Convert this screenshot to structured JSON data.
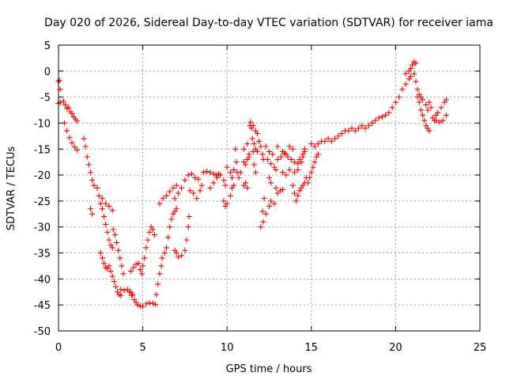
{
  "chart_data": {
    "type": "scatter",
    "title": "Day 020 of 2026, Sidereal Day-to-day VTEC variation (SDTVAR) for receiver iama",
    "xlabel": "GPS time / hours",
    "ylabel": "SDTVAR / TECUs",
    "xlim": [
      0,
      25
    ],
    "ylim": [
      -50,
      5
    ],
    "xticks": [
      0,
      5,
      10,
      15,
      20,
      25
    ],
    "yticks": [
      5,
      0,
      -5,
      -10,
      -15,
      -20,
      -25,
      -30,
      -35,
      -40,
      -45,
      -50
    ],
    "grid": true,
    "marker": "plus",
    "color": "#ff0000",
    "series": [
      {
        "name": "SDTVAR",
        "points": [
          [
            0.0,
            -2.0
          ],
          [
            0.05,
            -1.8
          ],
          [
            0.1,
            -3.5
          ],
          [
            0.0,
            -6.2
          ],
          [
            0.1,
            -6.0
          ],
          [
            0.3,
            -5.8
          ],
          [
            0.4,
            -6.5
          ],
          [
            0.5,
            -7.2
          ],
          [
            0.6,
            -7.0
          ],
          [
            0.7,
            -7.8
          ],
          [
            0.8,
            -8.2
          ],
          [
            0.9,
            -8.8
          ],
          [
            1.0,
            -9.2
          ],
          [
            1.1,
            -9.6
          ],
          [
            0.35,
            -10.0
          ],
          [
            0.5,
            -11.5
          ],
          [
            0.65,
            -12.8
          ],
          [
            0.8,
            -13.8
          ],
          [
            0.95,
            -14.6
          ],
          [
            1.1,
            -15.2
          ],
          [
            1.5,
            -13.0
          ],
          [
            1.6,
            -14.5
          ],
          [
            1.7,
            -16.5
          ],
          [
            1.8,
            -18.0
          ],
          [
            1.9,
            -19.5
          ],
          [
            2.0,
            -21.0
          ],
          [
            2.1,
            -22.0
          ],
          [
            1.9,
            -26.5
          ],
          [
            2.0,
            -27.5
          ],
          [
            2.3,
            -22.5
          ],
          [
            2.4,
            -24.0
          ],
          [
            2.5,
            -25.5
          ],
          [
            2.6,
            -26.5
          ],
          [
            2.7,
            -28.0
          ],
          [
            2.8,
            -29.5
          ],
          [
            2.9,
            -31.0
          ],
          [
            3.0,
            -32.5
          ],
          [
            3.1,
            -33.5
          ],
          [
            3.2,
            -34.0
          ],
          [
            2.6,
            -24.5
          ],
          [
            2.8,
            -25.5
          ],
          [
            3.0,
            -26.0
          ],
          [
            3.2,
            -26.8
          ],
          [
            2.5,
            -35.0
          ],
          [
            2.6,
            -36.0
          ],
          [
            2.7,
            -37.0
          ],
          [
            2.8,
            -37.8
          ],
          [
            2.9,
            -38.0
          ],
          [
            3.0,
            -37.5
          ],
          [
            3.1,
            -38.5
          ],
          [
            3.2,
            -39.5
          ],
          [
            3.3,
            -40.5
          ],
          [
            3.4,
            -41.5
          ],
          [
            3.5,
            -42.5
          ],
          [
            3.6,
            -43.0
          ],
          [
            3.7,
            -43.2
          ],
          [
            3.25,
            -30.5
          ],
          [
            3.35,
            -31.5
          ],
          [
            3.45,
            -33.0
          ],
          [
            3.55,
            -34.5
          ],
          [
            3.65,
            -36.0
          ],
          [
            3.75,
            -37.5
          ],
          [
            3.85,
            -39.0
          ],
          [
            3.7,
            -42.0
          ],
          [
            3.9,
            -42.2
          ],
          [
            4.1,
            -42.0
          ],
          [
            4.3,
            -42.5
          ],
          [
            4.4,
            -43.0
          ],
          [
            4.2,
            -42.5
          ],
          [
            4.35,
            -43.2
          ],
          [
            4.5,
            -44.0
          ],
          [
            4.6,
            -44.5
          ],
          [
            4.7,
            -45.0
          ],
          [
            4.85,
            -45.2
          ],
          [
            5.0,
            -45.3
          ],
          [
            5.2,
            -44.8
          ],
          [
            5.4,
            -44.6
          ],
          [
            5.6,
            -44.7
          ],
          [
            5.75,
            -44.9
          ],
          [
            4.3,
            -38.5
          ],
          [
            4.45,
            -37.8
          ],
          [
            4.6,
            -37.2
          ],
          [
            4.75,
            -37.0
          ],
          [
            4.85,
            -38.2
          ],
          [
            4.95,
            -39.0
          ],
          [
            5.0,
            -37.5
          ],
          [
            5.1,
            -36.0
          ],
          [
            5.2,
            -34.0
          ],
          [
            5.3,
            -32.5
          ],
          [
            5.4,
            -31.0
          ],
          [
            5.5,
            -30.0
          ],
          [
            5.6,
            -30.5
          ],
          [
            5.7,
            -31.5
          ],
          [
            5.8,
            -43.0
          ],
          [
            5.9,
            -41.0
          ],
          [
            6.0,
            -39.0
          ],
          [
            6.1,
            -37.5
          ],
          [
            6.15,
            -36.0
          ],
          [
            6.3,
            -35.0
          ],
          [
            6.4,
            -34.0
          ],
          [
            6.5,
            -32.0
          ],
          [
            6.6,
            -30.0
          ],
          [
            6.7,
            -28.5
          ],
          [
            6.8,
            -27.5
          ],
          [
            6.9,
            -27.0
          ],
          [
            7.0,
            -26.5
          ],
          [
            6.9,
            -34.5
          ],
          [
            7.0,
            -35.0
          ],
          [
            7.1,
            -35.8
          ],
          [
            7.3,
            -35.5
          ],
          [
            7.5,
            -34.5
          ],
          [
            7.6,
            -32.5
          ],
          [
            7.7,
            -30.0
          ],
          [
            7.75,
            -28.0
          ],
          [
            6.0,
            -25.5
          ],
          [
            6.2,
            -24.5
          ],
          [
            6.4,
            -24.0
          ],
          [
            6.6,
            -23.2
          ],
          [
            6.8,
            -22.5
          ],
          [
            7.0,
            -22.0
          ],
          [
            6.9,
            -24.5
          ],
          [
            7.1,
            -23.5
          ],
          [
            7.3,
            -22.5
          ],
          [
            7.5,
            -21.0
          ],
          [
            7.7,
            -20.0
          ],
          [
            7.9,
            -19.8
          ],
          [
            8.1,
            -20.5
          ],
          [
            8.3,
            -20.8
          ],
          [
            7.8,
            -23.0
          ],
          [
            8.0,
            -23.5
          ],
          [
            8.2,
            -24.5
          ],
          [
            8.4,
            -23.0
          ],
          [
            8.5,
            -22.0
          ],
          [
            8.6,
            -19.5
          ],
          [
            8.8,
            -19.3
          ],
          [
            9.0,
            -19.5
          ],
          [
            9.2,
            -19.8
          ],
          [
            9.35,
            -20.0
          ],
          [
            9.5,
            -19.8
          ],
          [
            9.0,
            -22.5
          ],
          [
            9.2,
            -21.5
          ],
          [
            9.4,
            -20.5
          ],
          [
            9.6,
            -20.0
          ],
          [
            9.8,
            -21.0
          ],
          [
            9.9,
            -22.0
          ],
          [
            9.8,
            -25.0
          ],
          [
            9.9,
            -26.0
          ],
          [
            10.0,
            -25.5
          ],
          [
            10.2,
            -24.0
          ],
          [
            10.3,
            -22.5
          ],
          [
            10.4,
            -22.0
          ],
          [
            10.0,
            -18.5
          ],
          [
            10.2,
            -19.5
          ],
          [
            10.3,
            -20.5
          ],
          [
            10.4,
            -19.0
          ],
          [
            10.5,
            -15.0
          ],
          [
            10.55,
            -17.5
          ],
          [
            10.6,
            -19.5
          ],
          [
            10.7,
            -20.5
          ],
          [
            10.8,
            -19.5
          ],
          [
            11.0,
            -17.5
          ],
          [
            11.1,
            -18.0
          ],
          [
            11.2,
            -17.0
          ],
          [
            11.3,
            -16.0
          ],
          [
            11.0,
            -22.0
          ],
          [
            11.1,
            -21.5
          ],
          [
            11.2,
            -22.5
          ],
          [
            11.35,
            -10.5
          ],
          [
            11.45,
            -11.0
          ],
          [
            11.5,
            -13.0
          ],
          [
            11.6,
            -14.0
          ],
          [
            11.7,
            -15.0
          ],
          [
            11.8,
            -15.5
          ],
          [
            11.4,
            -9.8
          ],
          [
            11.55,
            -10.5
          ],
          [
            11.7,
            -11.5
          ],
          [
            11.8,
            -12.0
          ],
          [
            11.9,
            -13.5
          ],
          [
            12.0,
            -14.5
          ],
          [
            12.1,
            -16.0
          ],
          [
            12.15,
            -17.0
          ],
          [
            11.55,
            -15.5
          ],
          [
            11.6,
            -18.0
          ],
          [
            11.7,
            -19.5
          ],
          [
            11.0,
            -15.0
          ],
          [
            11.2,
            -14.0
          ],
          [
            11.3,
            -16.5
          ],
          [
            12.2,
            -24.5
          ],
          [
            12.1,
            -27.0
          ],
          [
            12.0,
            -30.0
          ],
          [
            12.15,
            -29.0
          ],
          [
            12.3,
            -27.5
          ],
          [
            12.5,
            -26.0
          ],
          [
            12.6,
            -25.0
          ],
          [
            12.8,
            -25.5
          ],
          [
            12.4,
            -17.0
          ],
          [
            12.6,
            -17.8
          ],
          [
            12.8,
            -18.5
          ],
          [
            12.9,
            -19.0
          ],
          [
            12.5,
            -20.5
          ],
          [
            12.6,
            -21.5
          ],
          [
            12.3,
            -14.5
          ],
          [
            12.5,
            -15.5
          ],
          [
            12.7,
            -16.0
          ],
          [
            12.9,
            -22.5
          ],
          [
            13.0,
            -23.5
          ],
          [
            13.15,
            -23.0
          ],
          [
            13.3,
            -22.8
          ],
          [
            13.0,
            -17.0
          ],
          [
            13.2,
            -16.5
          ],
          [
            13.4,
            -15.8
          ],
          [
            13.6,
            -16.5
          ],
          [
            13.8,
            -17.0
          ],
          [
            14.0,
            -17.5
          ],
          [
            14.2,
            -17.8
          ],
          [
            13.0,
            -14.5
          ],
          [
            13.3,
            -15.5
          ],
          [
            13.5,
            -16.0
          ],
          [
            13.7,
            -14.5
          ],
          [
            13.9,
            -15.0
          ],
          [
            13.3,
            -19.5
          ],
          [
            13.5,
            -20.0
          ],
          [
            13.7,
            -19.0
          ],
          [
            13.9,
            -22.0
          ],
          [
            14.0,
            -23.5
          ],
          [
            14.1,
            -25.0
          ],
          [
            14.2,
            -24.0
          ],
          [
            14.3,
            -23.0
          ],
          [
            14.4,
            -22.5
          ],
          [
            14.5,
            -22.0
          ],
          [
            14.6,
            -21.5
          ],
          [
            14.7,
            -20.5
          ],
          [
            14.0,
            -19.5
          ],
          [
            14.2,
            -19.0
          ],
          [
            14.4,
            -17.5
          ],
          [
            14.5,
            -16.5
          ],
          [
            14.6,
            -15.5
          ],
          [
            14.3,
            -17.0
          ],
          [
            14.5,
            -16.0
          ],
          [
            14.6,
            -15.0
          ],
          [
            14.8,
            -21.5
          ],
          [
            14.9,
            -20.5
          ],
          [
            15.0,
            -19.5
          ],
          [
            15.1,
            -18.5
          ],
          [
            15.2,
            -17.5
          ],
          [
            15.3,
            -16.5
          ],
          [
            15.4,
            -16.0
          ],
          [
            15.0,
            -14.0
          ],
          [
            15.2,
            -14.5
          ],
          [
            15.4,
            -14.0
          ],
          [
            15.6,
            -13.5
          ],
          [
            15.8,
            -13.5
          ],
          [
            16.0,
            -13.0
          ],
          [
            16.2,
            -13.5
          ],
          [
            16.4,
            -13.0
          ],
          [
            16.6,
            -12.5
          ],
          [
            16.8,
            -12.0
          ],
          [
            17.0,
            -11.5
          ],
          [
            17.2,
            -11.5
          ],
          [
            17.4,
            -11.0
          ],
          [
            17.6,
            -11.5
          ],
          [
            17.8,
            -11.0
          ],
          [
            18.0,
            -10.5
          ],
          [
            18.2,
            -11.0
          ],
          [
            18.4,
            -10.5
          ],
          [
            18.6,
            -10.0
          ],
          [
            18.8,
            -9.5
          ],
          [
            19.0,
            -9.0
          ],
          [
            19.2,
            -8.8
          ],
          [
            19.4,
            -8.5
          ],
          [
            19.6,
            -8.0
          ],
          [
            19.8,
            -7.0
          ],
          [
            20.0,
            -6.0
          ],
          [
            20.2,
            -5.0
          ],
          [
            20.4,
            -3.5
          ],
          [
            20.6,
            -2.5
          ],
          [
            20.8,
            -1.5
          ],
          [
            20.6,
            -0.5
          ],
          [
            20.8,
            0.0
          ],
          [
            20.9,
            0.5
          ],
          [
            21.0,
            1.2
          ],
          [
            21.1,
            1.8
          ],
          [
            21.2,
            1.5
          ],
          [
            20.9,
            -1.0
          ],
          [
            21.1,
            -0.5
          ],
          [
            21.2,
            -2.0
          ],
          [
            21.3,
            -3.5
          ],
          [
            21.4,
            -4.5
          ],
          [
            21.5,
            -5.0
          ],
          [
            21.6,
            -5.5
          ],
          [
            21.3,
            -5.0
          ],
          [
            21.4,
            -6.0
          ],
          [
            21.5,
            -7.5
          ],
          [
            21.6,
            -8.5
          ],
          [
            21.7,
            -9.5
          ],
          [
            21.8,
            -10.5
          ],
          [
            21.9,
            -11.0
          ],
          [
            22.0,
            -11.5
          ],
          [
            21.8,
            -6.5
          ],
          [
            21.9,
            -7.5
          ],
          [
            22.0,
            -6.0
          ],
          [
            22.1,
            -7.0
          ],
          [
            22.3,
            -9.5
          ],
          [
            22.4,
            -8.5
          ],
          [
            22.5,
            -8.0
          ],
          [
            22.7,
            -7.0
          ],
          [
            22.9,
            -6.0
          ],
          [
            23.0,
            -5.5
          ],
          [
            22.2,
            -9.0
          ],
          [
            22.4,
            -9.5
          ],
          [
            22.6,
            -9.8
          ],
          [
            22.8,
            -9.5
          ],
          [
            23.0,
            -8.5
          ]
        ]
      }
    ]
  }
}
